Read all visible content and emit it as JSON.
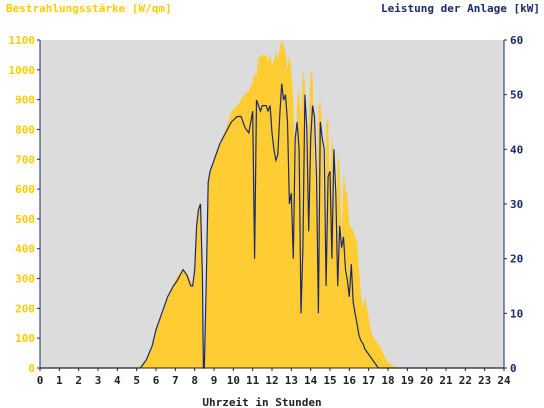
{
  "chart_data": {
    "type": "area",
    "title_left": "Bestrahlungsstärke [W/qm]",
    "title_right": "Leistung der Anlage [kW]",
    "xlabel": "Uhrzeit in Stunden",
    "x_ticks": [
      0,
      1,
      2,
      3,
      4,
      5,
      6,
      7,
      8,
      9,
      10,
      11,
      12,
      13,
      14,
      15,
      16,
      17,
      18,
      19,
      20,
      21,
      22,
      23,
      24
    ],
    "xlim": [
      0,
      24
    ],
    "y_left": {
      "ticks": [
        0,
        100,
        200,
        300,
        400,
        500,
        600,
        700,
        800,
        900,
        1000,
        1100
      ],
      "lim": [
        0,
        1100
      ]
    },
    "y_right": {
      "ticks": [
        0,
        10,
        20,
        30,
        40,
        50,
        60
      ],
      "lim": [
        0,
        60
      ]
    },
    "grid": false,
    "colors": {
      "irradiance": "#ffcc33",
      "power": "#1a2a6c",
      "plot_bg": "#dcdcdc",
      "left_axis_text": "#ffcc00",
      "right_axis_text": "#1a2a6c"
    },
    "series": [
      {
        "name": "Bestrahlungsstärke [W/qm]",
        "axis": "left",
        "x": [
          0,
          5.1,
          5.5,
          5.8,
          6.0,
          6.3,
          6.6,
          6.9,
          7.1,
          7.4,
          7.6,
          7.8,
          7.9,
          8.0,
          8.1,
          8.2,
          8.3,
          8.4,
          8.45,
          8.5,
          8.6,
          8.7,
          8.8,
          9.0,
          9.3,
          9.6,
          9.9,
          10.2,
          10.4,
          10.6,
          10.8,
          11.0,
          11.1,
          11.2,
          11.3,
          11.5,
          11.7,
          11.8,
          11.9,
          12.0,
          12.1,
          12.2,
          12.3,
          12.4,
          12.5,
          12.6,
          12.7,
          12.8,
          12.9,
          13.0,
          13.1,
          13.2,
          13.3,
          13.4,
          13.5,
          13.6,
          13.7,
          13.8,
          13.9,
          14.0,
          14.1,
          14.2,
          14.3,
          14.4,
          14.5,
          14.6,
          14.7,
          14.8,
          14.9,
          15.0,
          15.1,
          15.2,
          15.3,
          15.4,
          15.5,
          15.6,
          15.7,
          15.8,
          15.9,
          16.0,
          16.1,
          16.2,
          16.3,
          16.4,
          16.5,
          16.6,
          16.7,
          16.8,
          16.9,
          17.0,
          17.1,
          17.2,
          17.3,
          17.4,
          17.5,
          17.6,
          17.7,
          17.8,
          18.0,
          18.3,
          18.6,
          19.0,
          19.3,
          19.6,
          24
        ],
        "values": [
          0,
          0,
          30,
          80,
          130,
          180,
          230,
          280,
          310,
          330,
          320,
          290,
          280,
          330,
          480,
          540,
          560,
          320,
          10,
          10,
          300,
          620,
          660,
          700,
          750,
          800,
          860,
          880,
          900,
          920,
          930,
          960,
          990,
          980,
          1040,
          1050,
          1050,
          1030,
          1050,
          1020,
          1030,
          1060,
          1040,
          1070,
          1100,
          1080,
          1060,
          1000,
          1050,
          1000,
          900,
          620,
          900,
          940,
          820,
          1000,
          960,
          650,
          820,
          1000,
          980,
          700,
          500,
          880,
          900,
          800,
          430,
          820,
          840,
          600,
          780,
          700,
          420,
          720,
          680,
          430,
          650,
          600,
          580,
          480,
          470,
          460,
          440,
          420,
          330,
          250,
          200,
          240,
          210,
          170,
          130,
          110,
          100,
          90,
          80,
          70,
          60,
          40,
          20,
          5,
          0,
          0,
          0,
          0,
          0
        ]
      },
      {
        "name": "Leistung der Anlage [kW]",
        "axis": "right",
        "x": [
          0,
          5.2,
          5.5,
          5.8,
          6.0,
          6.3,
          6.6,
          6.9,
          7.1,
          7.4,
          7.6,
          7.8,
          7.9,
          8.0,
          8.1,
          8.2,
          8.3,
          8.4,
          8.45,
          8.5,
          8.6,
          8.7,
          8.8,
          9.0,
          9.3,
          9.6,
          9.9,
          10.2,
          10.4,
          10.6,
          10.8,
          11.0,
          11.1,
          11.2,
          11.3,
          11.4,
          11.5,
          11.7,
          11.8,
          11.9,
          12.0,
          12.1,
          12.2,
          12.3,
          12.4,
          12.5,
          12.6,
          12.7,
          12.8,
          12.9,
          13.0,
          13.1,
          13.2,
          13.3,
          13.4,
          13.5,
          13.6,
          13.7,
          13.8,
          13.9,
          14.0,
          14.1,
          14.2,
          14.3,
          14.4,
          14.5,
          14.6,
          14.7,
          14.8,
          14.9,
          15.0,
          15.1,
          15.2,
          15.3,
          15.4,
          15.5,
          15.6,
          15.7,
          15.8,
          15.9,
          16.0,
          16.1,
          16.2,
          16.3,
          16.4,
          16.5,
          16.6,
          16.7,
          16.8,
          16.9,
          17.0,
          17.1,
          17.2,
          17.3,
          17.4,
          17.5,
          17.6,
          17.7,
          17.8,
          18.0,
          18.3,
          18.6,
          19.0,
          19.3,
          19.6,
          24
        ],
        "values": [
          0,
          0,
          1.5,
          4,
          7,
          10,
          13,
          15,
          16,
          18,
          17,
          15,
          15,
          18,
          26,
          29,
          30,
          17,
          0,
          0,
          16,
          34,
          36,
          38,
          41,
          43,
          45,
          46,
          46,
          44,
          43,
          47,
          20,
          49,
          48,
          47,
          48,
          48,
          47,
          48,
          43,
          40,
          38,
          39,
          46,
          52,
          49,
          50,
          45,
          30,
          32,
          20,
          42,
          45,
          40,
          10,
          22,
          50,
          44,
          25,
          42,
          48,
          46,
          35,
          10,
          45,
          42,
          40,
          15,
          35,
          36,
          20,
          40,
          32,
          15,
          26,
          22,
          24,
          18,
          16,
          13,
          19,
          12,
          10,
          8,
          6,
          5,
          4.5,
          3.5,
          3,
          2.5,
          2,
          1.5,
          1,
          0.5,
          0,
          0,
          0,
          0,
          0,
          0,
          0,
          0,
          0,
          0,
          0
        ]
      }
    ]
  }
}
